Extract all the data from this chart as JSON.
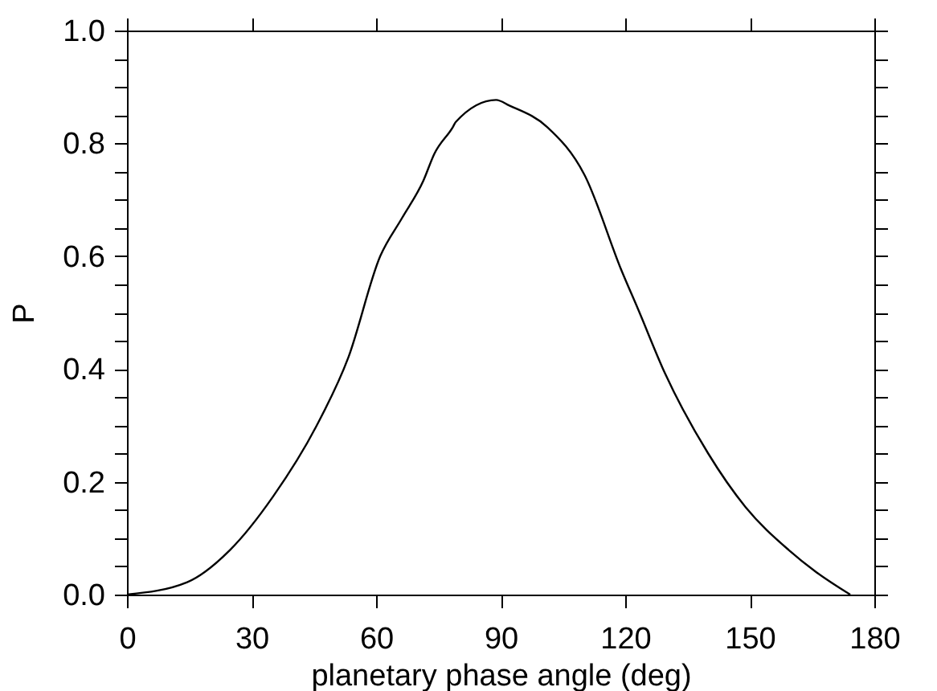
{
  "chart_data": {
    "type": "line",
    "xlabel": "planetary phase angle (deg)",
    "ylabel": "P",
    "x": [
      0,
      14.5,
      24.8,
      35.2,
      45.5,
      53.3,
      61.0,
      66.2,
      71.4,
      74.0,
      78.5,
      79.2,
      88.9,
      92.1,
      101.2,
      110.2,
      119.2,
      123.1,
      129.6,
      140.0,
      149.0,
      159.4,
      165.8,
      174.2
    ],
    "series": [
      {
        "color": "#000000",
        "values": [
          0,
          0.022,
          0.079,
          0.174,
          0.297,
          0.42,
          0.6,
          0.667,
          0.734,
          0.781,
          0.829,
          0.838,
          0.877,
          0.867,
          0.829,
          0.744,
          0.573,
          0.506,
          0.392,
          0.25,
          0.155,
          0.079,
          0.041,
          0
        ]
      }
    ],
    "xlim": [
      0,
      180
    ],
    "xticks": [
      0,
      30,
      60,
      90,
      120,
      150,
      180
    ],
    "ylim": [
      0,
      1
    ],
    "yticks": [
      {
        "value": 0,
        "label": "0.0"
      },
      {
        "value": 0.05,
        "label": null
      },
      {
        "value": 0.1,
        "label": null
      },
      {
        "value": 0.15,
        "label": null
      },
      {
        "value": 0.2,
        "label": "0.2"
      },
      {
        "value": 0.25,
        "label": null
      },
      {
        "value": 0.3,
        "label": null
      },
      {
        "value": 0.35,
        "label": null
      },
      {
        "value": 0.4,
        "label": "0.4"
      },
      {
        "value": 0.45,
        "label": null
      },
      {
        "value": 0.5,
        "label": null
      },
      {
        "value": 0.55,
        "label": null
      },
      {
        "value": 0.6,
        "label": "0.6"
      },
      {
        "value": 0.65,
        "label": null
      },
      {
        "value": 0.7,
        "label": null
      },
      {
        "value": 0.75,
        "label": null
      },
      {
        "value": 0.8,
        "label": "0.8"
      },
      {
        "value": 0.85,
        "label": null
      },
      {
        "value": 0.9,
        "label": null
      },
      {
        "value": 0.95,
        "label": null
      },
      {
        "value": 1,
        "label": "1.0"
      }
    ],
    "grid": false,
    "marker": "none",
    "line_style": "solid"
  }
}
